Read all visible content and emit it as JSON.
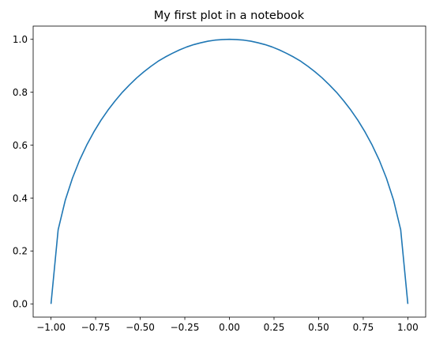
{
  "chart_data": {
    "type": "line",
    "title": "My first plot in a notebook",
    "xlabel": "",
    "ylabel": "",
    "xlim": [
      -1.1,
      1.1
    ],
    "ylim": [
      -0.05,
      1.05
    ],
    "grid": false,
    "x_ticks": [
      -1.0,
      -0.75,
      -0.5,
      -0.25,
      0.0,
      0.25,
      0.5,
      0.75,
      1.0
    ],
    "x_tick_labels": [
      "−1.00",
      "−0.75",
      "−0.50",
      "−0.25",
      "0.00",
      "0.25",
      "0.50",
      "0.75",
      "1.00"
    ],
    "y_ticks": [
      0.0,
      0.2,
      0.4,
      0.6,
      0.8,
      1.0
    ],
    "y_tick_labels": [
      "0.0",
      "0.2",
      "0.4",
      "0.6",
      "0.8",
      "1.0"
    ],
    "series": [
      {
        "color": "#1f77b4",
        "x": [
          -1.0,
          -0.96,
          -0.92,
          -0.88,
          -0.84,
          -0.8,
          -0.76,
          -0.72,
          -0.68,
          -0.64,
          -0.6,
          -0.56,
          -0.52,
          -0.48,
          -0.44,
          -0.4,
          -0.36,
          -0.32,
          -0.28,
          -0.24,
          -0.2,
          -0.16,
          -0.12,
          -0.08,
          -0.04,
          0.0,
          0.04,
          0.08,
          0.12,
          0.16,
          0.2,
          0.24,
          0.28,
          0.32,
          0.36,
          0.4,
          0.44,
          0.48,
          0.52,
          0.56,
          0.6,
          0.64,
          0.68,
          0.72,
          0.76,
          0.8,
          0.84,
          0.88,
          0.92,
          0.96,
          1.0
        ],
        "y": [
          0.0,
          0.28,
          0.392,
          0.475,
          0.543,
          0.6,
          0.65,
          0.694,
          0.733,
          0.768,
          0.8,
          0.828,
          0.854,
          0.877,
          0.898,
          0.917,
          0.933,
          0.947,
          0.96,
          0.971,
          0.98,
          0.987,
          0.993,
          0.997,
          0.999,
          1.0,
          0.999,
          0.997,
          0.993,
          0.987,
          0.98,
          0.971,
          0.96,
          0.947,
          0.933,
          0.917,
          0.898,
          0.877,
          0.854,
          0.828,
          0.8,
          0.768,
          0.733,
          0.694,
          0.65,
          0.6,
          0.543,
          0.475,
          0.392,
          0.28,
          0.0
        ]
      }
    ]
  }
}
